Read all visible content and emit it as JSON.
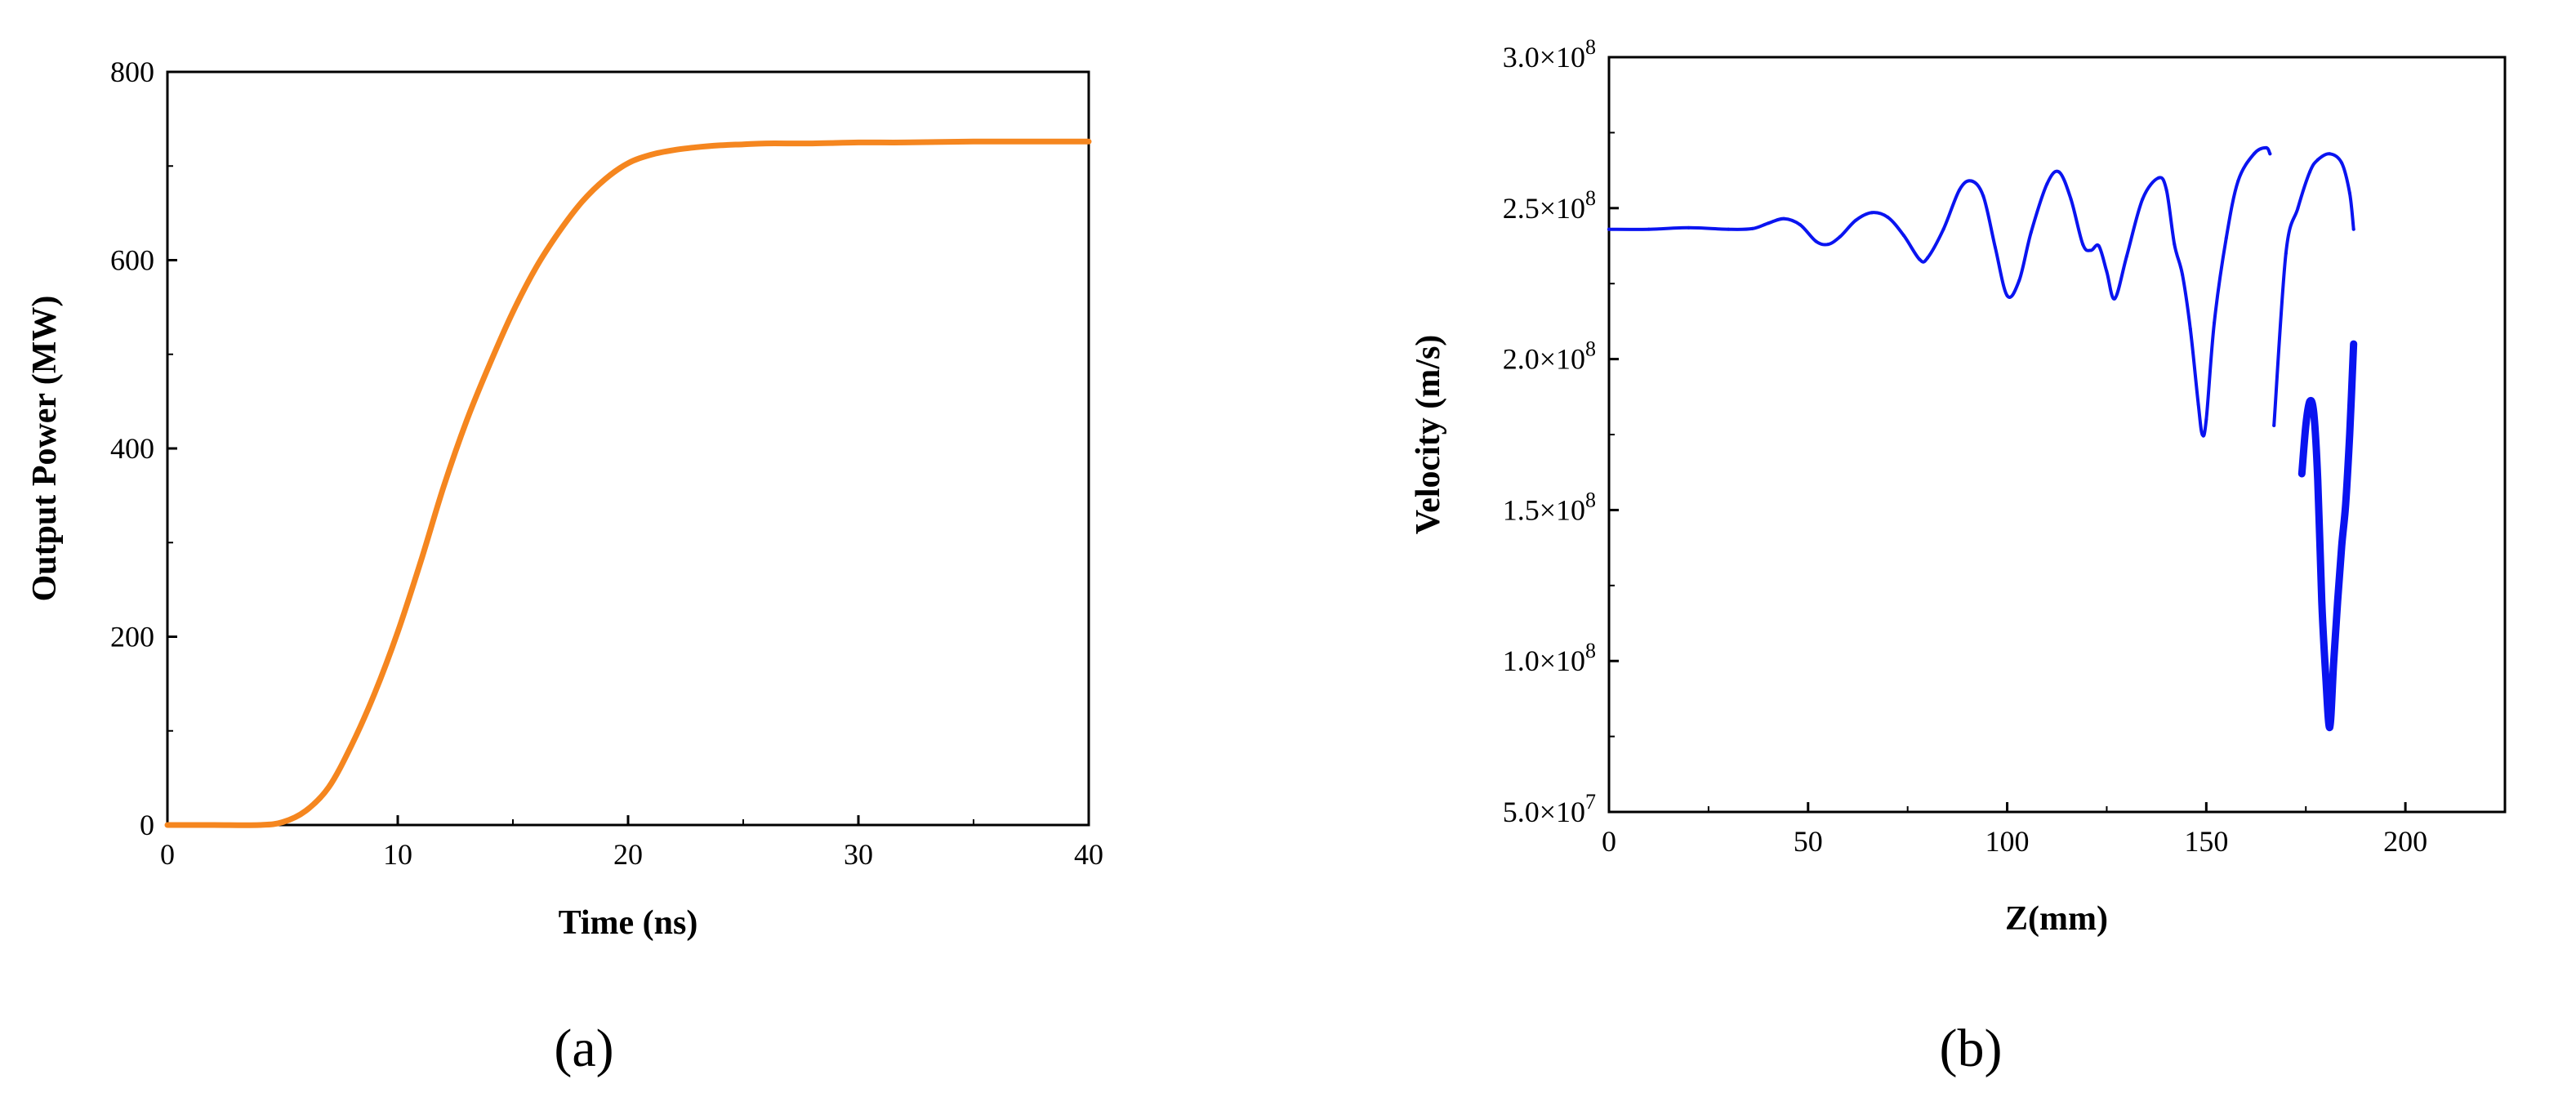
{
  "chart_data": [
    {
      "type": "line",
      "panel_label": "(a)",
      "xlabel": "Time (ns)",
      "ylabel": "Output Power (MW)",
      "xlim": [
        0,
        40
      ],
      "ylim": [
        0,
        800
      ],
      "x_ticks": [
        0,
        10,
        20,
        30,
        40
      ],
      "y_ticks": [
        0,
        200,
        400,
        600,
        800
      ],
      "grid": false,
      "line_color": "#f5861f",
      "series": [
        {
          "x": [
            0,
            2,
            4,
            5,
            6,
            7,
            8,
            9,
            10,
            11,
            12,
            13,
            14,
            15,
            16,
            17,
            18,
            19,
            20,
            21,
            22,
            23,
            24,
            25,
            26,
            28,
            30,
            32,
            35,
            38,
            40
          ],
          "values": [
            0,
            0,
            0,
            3,
            15,
            40,
            85,
            140,
            205,
            280,
            360,
            430,
            490,
            545,
            592,
            630,
            662,
            686,
            703,
            712,
            717,
            720,
            722,
            723,
            724,
            724,
            725,
            725,
            726,
            726,
            726
          ]
        }
      ]
    },
    {
      "type": "scatter",
      "panel_label": "(b)",
      "xlabel": "Z(mm)",
      "ylabel": "Velocity (m/s)",
      "xlim": [
        0,
        225
      ],
      "ylim": [
        50000000,
        300000000
      ],
      "x_ticks": [
        0,
        50,
        100,
        150,
        200
      ],
      "y_tick_values": [
        50000000,
        100000000,
        150000000,
        200000000,
        250000000,
        300000000
      ],
      "y_ticks": [
        "5.0×10^7",
        "1.0×10^8",
        "1.5×10^8",
        "2.0×10^8",
        "2.5×10^8",
        "3.0×10^8"
      ],
      "grid": false,
      "line_color": "#0a14f0",
      "series": [
        {
          "x": [
            0,
            10,
            20,
            30,
            36,
            40,
            44,
            48,
            52,
            55,
            58,
            62,
            66,
            70,
            74,
            78,
            80,
            84,
            88,
            91,
            94,
            97,
            100,
            103,
            106,
            110,
            113,
            116,
            119,
            121,
            123,
            125,
            127,
            130,
            134,
            138,
            140,
            142,
            144,
            146,
            148,
            149,
            150,
            152,
            155,
            158,
            162,
            165,
            166
          ],
          "values": [
            243000000,
            243000000,
            243500000,
            243000000,
            243200000,
            245000000,
            246500000,
            244500000,
            239000000,
            238000000,
            240500000,
            246000000,
            248500000,
            247000000,
            241000000,
            233000000,
            233500000,
            243000000,
            256000000,
            259000000,
            254000000,
            237000000,
            221000000,
            226000000,
            242000000,
            258000000,
            262000000,
            253000000,
            238000000,
            236000000,
            237500000,
            229000000,
            220000000,
            234000000,
            253000000,
            260000000,
            256000000,
            238000000,
            228000000,
            210000000,
            185000000,
            175000000,
            180000000,
            212000000,
            240000000,
            259000000,
            268000000,
            270000000,
            268000000
          ]
        },
        {
          "x": [
            167,
            170,
            173,
            176,
            178,
            181,
            184,
            186,
            187
          ],
          "values": [
            178000000,
            235000000,
            250000000,
            262000000,
            266000000,
            268000000,
            265000000,
            255000000,
            243000000
          ]
        },
        {
          "x": [
            174,
            175,
            176,
            177,
            178,
            179,
            180,
            181,
            182,
            183,
            184,
            185,
            186,
            187
          ],
          "values": [
            162000000,
            178000000,
            186000000,
            182000000,
            160000000,
            120000000,
            95000000,
            78000000,
            100000000,
            120000000,
            138000000,
            152000000,
            175000000,
            205000000
          ]
        }
      ]
    }
  ]
}
